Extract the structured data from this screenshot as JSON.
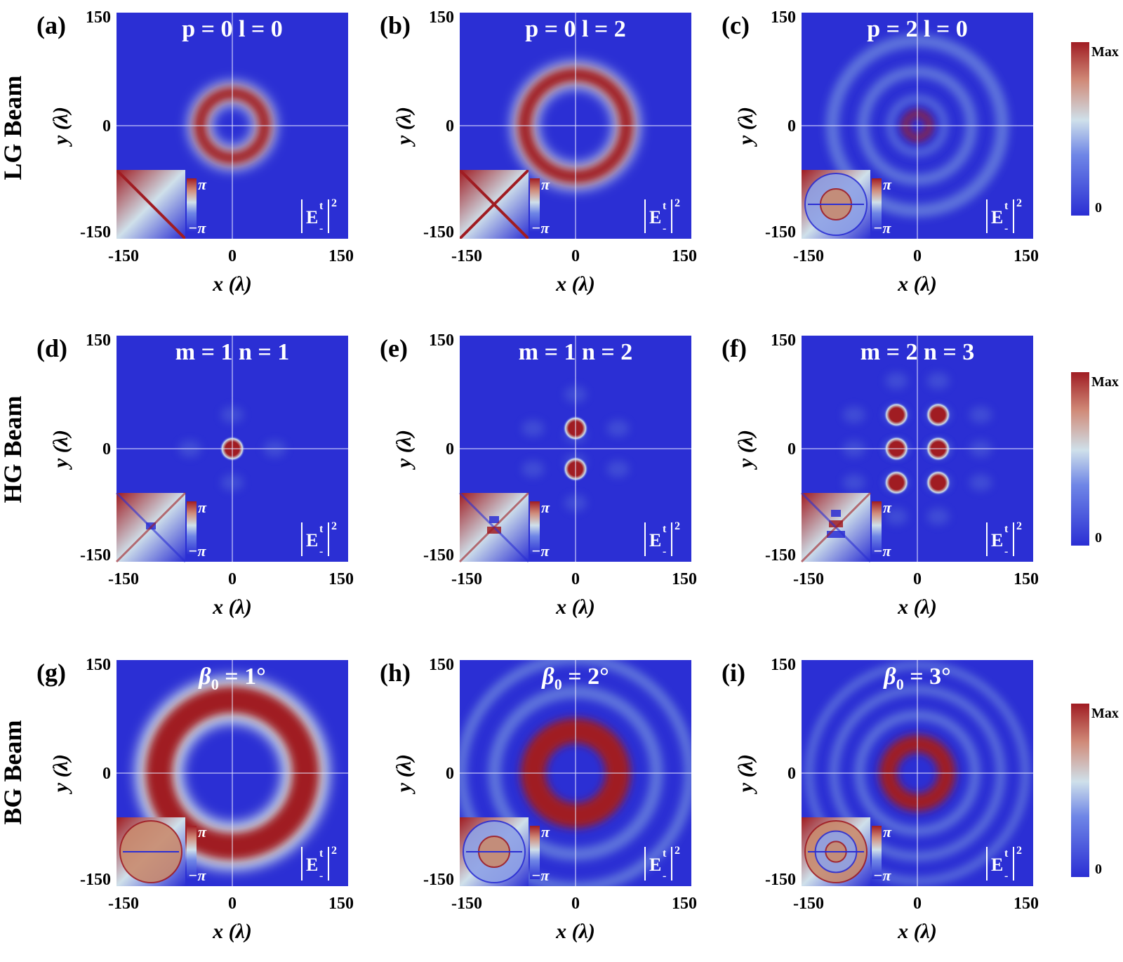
{
  "figure": {
    "row_labels": [
      "LG  Beam",
      "HG  Beam",
      "BG  Beam"
    ],
    "x_label": "x (λ)",
    "y_label": "y (λ)",
    "tick_labels": [
      "-150",
      "0",
      "150"
    ],
    "intensity_symbol": {
      "base": "E",
      "sup": "t",
      "sub": "-",
      "power": "2"
    },
    "phase_colorbar": {
      "max": "π",
      "min": "−π"
    },
    "intensity_colorbar": {
      "max": "Max",
      "min": "0"
    },
    "colors": {
      "low": "#2b2fd4",
      "mid": "#cfe0ea",
      "high": "#a01c22",
      "axis_line": "#e8e8ff"
    }
  },
  "chart_data": [
    {
      "type": "heatmap",
      "panel": "(a)",
      "beam": "LG",
      "param_text": [
        "p = 0",
        "l = 0"
      ],
      "xlim": [
        -150,
        150
      ],
      "ylim": [
        -150,
        150
      ],
      "pattern": "ring",
      "ring_radius": 42,
      "ring_width": 15,
      "phase_pattern": "vortex-1",
      "colorbar": "|E-t|^2"
    },
    {
      "type": "heatmap",
      "panel": "(b)",
      "beam": "LG",
      "param_text": [
        "p = 0",
        "l = 2"
      ],
      "xlim": [
        -150,
        150
      ],
      "ylim": [
        -150,
        150
      ],
      "pattern": "ring",
      "ring_radius": 66,
      "ring_width": 17,
      "phase_pattern": "vortex-2",
      "colorbar": "|E-t|^2"
    },
    {
      "type": "heatmap",
      "panel": "(c)",
      "beam": "LG",
      "param_text": [
        "p = 2",
        "l = 0"
      ],
      "xlim": [
        -150,
        150
      ],
      "ylim": [
        -150,
        150
      ],
      "pattern": "multiring",
      "rings": [
        {
          "r": 16,
          "w": 5
        },
        {
          "r": 35,
          "w": 7
        },
        {
          "r": 70,
          "w": 12
        },
        {
          "r": 110,
          "w": 14
        }
      ],
      "phase_pattern": "vortex-ring",
      "colorbar": "|E-t|^2"
    },
    {
      "type": "heatmap",
      "panel": "(d)",
      "beam": "HG",
      "param_text": [
        "m = 1",
        "n = 1"
      ],
      "xlim": [
        -150,
        150
      ],
      "ylim": [
        -150,
        150
      ],
      "pattern": "spots",
      "spots": [
        [
          0,
          0
        ]
      ],
      "phase_pattern": "quad-1",
      "colorbar": "|E-t|^2"
    },
    {
      "type": "heatmap",
      "panel": "(e)",
      "beam": "HG",
      "param_text": [
        "m = 1",
        "n = 2"
      ],
      "xlim": [
        -150,
        150
      ],
      "ylim": [
        -150,
        150
      ],
      "pattern": "spots",
      "spots": [
        [
          0,
          27
        ],
        [
          0,
          -27
        ]
      ],
      "phase_pattern": "quad-2",
      "colorbar": "|E-t|^2"
    },
    {
      "type": "heatmap",
      "panel": "(f)",
      "beam": "HG",
      "param_text": [
        "m = 2",
        "n = 3"
      ],
      "xlim": [
        -150,
        150
      ],
      "ylim": [
        -150,
        150
      ],
      "pattern": "spots",
      "spots": [
        [
          -27,
          45
        ],
        [
          27,
          45
        ],
        [
          -27,
          0
        ],
        [
          27,
          0
        ],
        [
          -27,
          -45
        ],
        [
          27,
          -45
        ]
      ],
      "phase_pattern": "quad-3",
      "colorbar": "|E-t|^2"
    },
    {
      "type": "heatmap",
      "panel": "(g)",
      "beam": "BG",
      "param_text": [
        "β",
        "0",
        " = 1°"
      ],
      "xlim": [
        -150,
        150
      ],
      "ylim": [
        -150,
        150
      ],
      "pattern": "ring",
      "ring_radius": 95,
      "ring_width": 32,
      "phase_pattern": "bg-1",
      "colorbar": "|E-t|^2"
    },
    {
      "type": "heatmap",
      "panel": "(h)",
      "beam": "BG",
      "param_text": [
        "β",
        "0",
        " = 2°"
      ],
      "xlim": [
        -150,
        150
      ],
      "ylim": [
        -150,
        150
      ],
      "pattern": "multiring",
      "rings": [
        {
          "r": 55,
          "w": 20
        },
        {
          "r": 105,
          "w": 14
        },
        {
          "r": 148,
          "w": 12
        }
      ],
      "phase_pattern": "bg-2",
      "colorbar": "|E-t|^2"
    },
    {
      "type": "heatmap",
      "panel": "(i)",
      "beam": "BG",
      "param_text": [
        "β",
        "0",
        " = 3°"
      ],
      "xlim": [
        -150,
        150
      ],
      "ylim": [
        -150,
        150
      ],
      "pattern": "multiring",
      "rings": [
        {
          "r": 38,
          "w": 14
        },
        {
          "r": 75,
          "w": 10
        },
        {
          "r": 108,
          "w": 9
        },
        {
          "r": 140,
          "w": 8
        }
      ],
      "phase_pattern": "bg-3",
      "colorbar": "|E-t|^2"
    }
  ]
}
